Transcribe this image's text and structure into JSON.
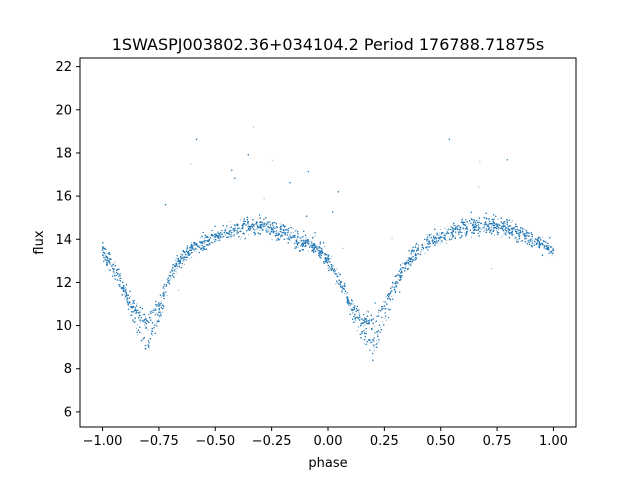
{
  "chart_data": {
    "type": "scatter",
    "title": "1SWASPJ003802.36+034104.2 Period 176788.71875s",
    "xlabel": "phase",
    "ylabel": "flux",
    "xlim": [
      -1.1,
      1.1
    ],
    "ylim": [
      5.3,
      22.4
    ],
    "x_ticks": [
      -1.0,
      -0.75,
      -0.5,
      -0.25,
      0.0,
      0.25,
      0.5,
      0.75,
      1.0
    ],
    "x_tick_labels": [
      "−1.00",
      "−0.75",
      "−0.50",
      "−0.25",
      "0.00",
      "0.25",
      "0.50",
      "0.75",
      "1.00"
    ],
    "y_ticks": [
      6,
      8,
      10,
      12,
      14,
      16,
      18,
      20,
      22
    ],
    "y_tick_labels": [
      "6",
      "8",
      "10",
      "12",
      "14",
      "16",
      "18",
      "20",
      "22"
    ],
    "grid": false,
    "point_color": "#1f77b4",
    "series": [
      {
        "x": [
          -1.0,
          -0.95,
          -0.9,
          -0.85,
          -0.8,
          -0.75,
          -0.7,
          -0.65,
          -0.6,
          -0.55,
          -0.5,
          -0.45,
          -0.4,
          -0.35,
          -0.3,
          -0.25,
          -0.2,
          -0.15,
          -0.1,
          -0.05,
          0.0,
          0.05,
          0.1,
          0.15,
          0.2,
          0.25,
          0.3,
          0.35,
          0.4,
          0.45,
          0.5,
          0.55,
          0.6,
          0.65,
          0.7,
          0.75,
          0.8,
          0.85,
          0.9,
          0.95,
          1.0
        ],
        "y": [
          13.5,
          12.6,
          11.6,
          10.7,
          10.2,
          11.0,
          12.3,
          13.1,
          13.6,
          13.9,
          14.1,
          14.3,
          14.5,
          14.6,
          14.6,
          14.5,
          14.3,
          14.1,
          13.9,
          13.6,
          13.0,
          12.1,
          11.0,
          10.3,
          10.1,
          10.9,
          12.0,
          12.9,
          13.5,
          13.9,
          14.1,
          14.3,
          14.5,
          14.6,
          14.7,
          14.6,
          14.5,
          14.3,
          14.0,
          13.8,
          13.5
        ]
      }
    ]
  }
}
